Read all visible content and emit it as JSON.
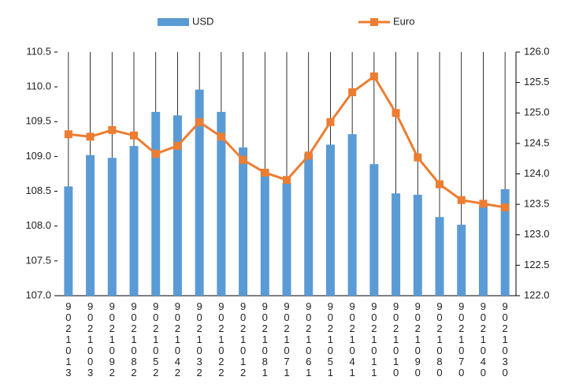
{
  "chart_data": {
    "type": "bar_line",
    "categories": [
      "9021013",
      "9021003",
      "9021092",
      "9021082",
      "9021052",
      "9021042",
      "9021032",
      "9021022",
      "9021012",
      "9021081",
      "9021071",
      "9021061",
      "9021051",
      "9021041",
      "9021011",
      "9021010",
      "9021090",
      "9021080",
      "9021070",
      "9021040",
      "9021030"
    ],
    "series": [
      {
        "name": "USD",
        "type": "bar",
        "color": "#5b9bd5",
        "axis": "y",
        "values": [
          108.57,
          109.02,
          108.98,
          109.15,
          109.64,
          109.59,
          109.96,
          109.64,
          109.13,
          108.8,
          108.62,
          109.04,
          109.17,
          109.32,
          108.89,
          108.47,
          108.45,
          108.13,
          108.02,
          108.3,
          108.53
        ]
      },
      {
        "name": "Euro",
        "type": "line",
        "color": "#ed7d31",
        "axis": "y2",
        "values": [
          124.65,
          124.61,
          124.72,
          124.63,
          124.33,
          124.46,
          124.85,
          124.61,
          124.23,
          124.02,
          123.9,
          124.3,
          124.85,
          125.34,
          125.6,
          125.0,
          124.27,
          123.83,
          123.57,
          123.51,
          123.45
        ]
      }
    ],
    "ylim": [
      107,
      110.5
    ],
    "yticks": [
      {
        "value": 107,
        "label": "107.0"
      },
      107.5,
      {
        "value": 108,
        "label": "108.0"
      },
      108.5,
      {
        "value": 109,
        "label": "109.0"
      },
      109.5,
      {
        "value": 110,
        "label": "110.0"
      },
      110.5
    ],
    "y2lim": [
      122,
      126
    ],
    "y2ticks": [
      {
        "value": 122,
        "label": "122.0"
      },
      122.5,
      {
        "value": 123,
        "label": "123.0"
      },
      123.5,
      {
        "value": 124,
        "label": "124.0"
      },
      124.5,
      {
        "value": 125,
        "label": "125.0"
      },
      125.5,
      {
        "value": 126,
        "label": "126.0"
      }
    ],
    "grid": "x",
    "legend": "top"
  }
}
